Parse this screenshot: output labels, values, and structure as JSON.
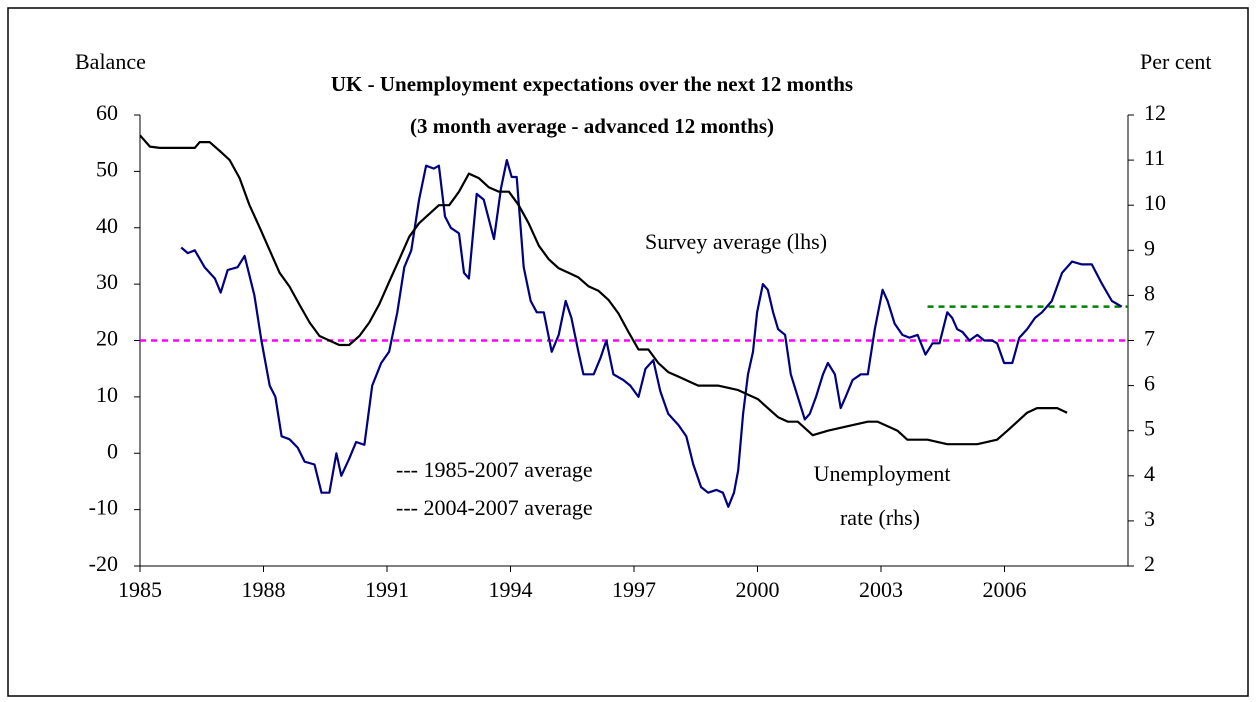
{
  "chart_data": {
    "type": "line",
    "title": [
      "UK - Unemployment expectations over the next 12 months",
      "(3 month average - advanced 12 months)"
    ],
    "ylabel": "Balance",
    "y2label": "Per cent",
    "xlim": [
      1985,
      2009
    ],
    "xticks": [
      1985,
      1988,
      1991,
      1994,
      1997,
      2000,
      2003,
      2006
    ],
    "ylim": [
      -20,
      60
    ],
    "yticks": [
      -20,
      -10,
      0,
      10,
      20,
      30,
      40,
      50,
      60
    ],
    "y2lim": [
      2,
      12
    ],
    "y2ticks": [
      2,
      3,
      4,
      5,
      6,
      7,
      8,
      9,
      10,
      11,
      12
    ],
    "grid": false,
    "series": [
      {
        "name": "Survey average (lhs)",
        "color": "#000080",
        "x": [
          1986.0,
          1986.16,
          1986.33,
          1986.57,
          1986.82,
          1986.96,
          1987.13,
          1987.37,
          1987.54,
          1987.78,
          1987.95,
          1988.15,
          1988.29,
          1988.44,
          1988.63,
          1988.83,
          1989.0,
          1989.24,
          1989.41,
          1989.6,
          1989.77,
          1989.89,
          1990.08,
          1990.25,
          1990.45,
          1990.64,
          1990.86,
          1991.05,
          1991.25,
          1991.42,
          1991.59,
          1991.78,
          1991.95,
          1992.14,
          1992.26,
          1992.41,
          1992.55,
          1992.75,
          1992.87,
          1992.99,
          1993.18,
          1993.35,
          1993.6,
          1993.77,
          1993.91,
          1994.03,
          1994.15,
          1994.32,
          1994.49,
          1994.64,
          1994.81,
          1995.0,
          1995.17,
          1995.34,
          1995.48,
          1995.65,
          1995.77,
          1996.02,
          1996.19,
          1996.33,
          1996.5,
          1996.74,
          1996.91,
          1997.11,
          1997.28,
          1997.47,
          1997.64,
          1997.83,
          1998.08,
          1998.27,
          1998.44,
          1998.63,
          1998.8,
          1999.0,
          1999.16,
          1999.29,
          1999.43,
          1999.53,
          1999.65,
          1999.77,
          1999.89,
          1999.99,
          2000.13,
          2000.25,
          2000.38,
          2000.5,
          2000.67,
          2000.81,
          2000.98,
          2001.15,
          2001.27,
          2001.42,
          2001.59,
          2001.71,
          2001.88,
          2002.02,
          2002.14,
          2002.31,
          2002.51,
          2002.68,
          2002.85,
          2003.04,
          2003.16,
          2003.33,
          2003.52,
          2003.69,
          2003.89,
          2004.08,
          2004.25,
          2004.42,
          2004.61,
          2004.73,
          2004.85,
          2004.98,
          2005.15,
          2005.34,
          2005.51,
          2005.7,
          2005.82,
          2005.99,
          2006.19,
          2006.36,
          2006.55,
          2006.74,
          2006.91,
          2007.15,
          2007.4,
          2007.64,
          2007.88,
          2008.12,
          2008.37,
          2008.61,
          2008.85
        ],
        "values": [
          36.5,
          35.5,
          36,
          33,
          31,
          28.5,
          32.5,
          33,
          35,
          28,
          20,
          12,
          10,
          3,
          2.5,
          1,
          -1.5,
          -2,
          -7,
          -7,
          0,
          -4,
          -1,
          2,
          1.5,
          12,
          16,
          18,
          25,
          33,
          36,
          45,
          51,
          50.5,
          51,
          42,
          40,
          39,
          32,
          31,
          46,
          45,
          38,
          47,
          52,
          49,
          49,
          33,
          27,
          25,
          25,
          18,
          21,
          27,
          24,
          18,
          14,
          14,
          17,
          20,
          14,
          13,
          12,
          10,
          15,
          16.5,
          11,
          7,
          5,
          3,
          -2,
          -6,
          -7,
          -6.5,
          -7,
          -9.5,
          -7,
          -3,
          7,
          14,
          18,
          25,
          30,
          29,
          25,
          22,
          21,
          14,
          10,
          6,
          7,
          10,
          14,
          16,
          14,
          8,
          10,
          13,
          14,
          14,
          22,
          29,
          27,
          23,
          21,
          20.5,
          21,
          17.5,
          19.5,
          19.5,
          25,
          24,
          22,
          21.5,
          20,
          21,
          20,
          20,
          19.5,
          16,
          16,
          20.5,
          22,
          24,
          25,
          27,
          32,
          34,
          33.5,
          33.5,
          30,
          27,
          26
        ]
      },
      {
        "name": "Unemployment rate (rhs)",
        "name_lines": [
          "Unemployment",
          "rate (rhs)"
        ],
        "color": "#000000",
        "axis": "y2",
        "x": [
          1985.0,
          1985.24,
          1985.48,
          1986.33,
          1986.45,
          1986.69,
          1986.94,
          1987.18,
          1987.42,
          1987.66,
          1987.91,
          1988.15,
          1988.39,
          1988.63,
          1988.87,
          1989.12,
          1989.36,
          1989.6,
          1989.84,
          1990.08,
          1990.33,
          1990.57,
          1990.81,
          1991.05,
          1991.3,
          1991.54,
          1991.78,
          1992.02,
          1992.26,
          1992.51,
          1992.75,
          1992.99,
          1993.23,
          1993.47,
          1993.72,
          1993.96,
          1994.2,
          1994.44,
          1994.69,
          1994.93,
          1995.17,
          1995.41,
          1995.65,
          1995.9,
          1996.14,
          1996.38,
          1996.62,
          1996.86,
          1997.11,
          1997.35,
          1997.59,
          1997.83,
          1998.08,
          1998.32,
          1998.56,
          1999.04,
          1999.53,
          1999.77,
          2000.01,
          2000.25,
          2000.5,
          2000.74,
          2000.98,
          2001.34,
          2001.71,
          2002.19,
          2002.68,
          2002.92,
          2003.4,
          2003.64,
          2004.13,
          2004.61,
          2004.85,
          2005.34,
          2005.82,
          2006.07,
          2006.31,
          2006.55,
          2006.79,
          2007.28,
          2007.52
        ],
        "values": [
          11.55,
          11.3,
          11.27,
          11.27,
          11.4,
          11.4,
          11.2,
          11.0,
          10.6,
          10.0,
          9.5,
          9.0,
          8.5,
          8.2,
          7.8,
          7.4,
          7.1,
          7.0,
          6.9,
          6.9,
          7.1,
          7.4,
          7.8,
          8.3,
          8.8,
          9.3,
          9.6,
          9.8,
          10.0,
          10.0,
          10.3,
          10.7,
          10.6,
          10.4,
          10.3,
          10.3,
          10.0,
          9.6,
          9.1,
          8.8,
          8.6,
          8.5,
          8.4,
          8.2,
          8.1,
          7.9,
          7.6,
          7.2,
          6.8,
          6.8,
          6.5,
          6.3,
          6.2,
          6.1,
          6.0,
          6.0,
          5.9,
          5.8,
          5.7,
          5.5,
          5.3,
          5.2,
          5.2,
          4.9,
          5.0,
          5.1,
          5.2,
          5.2,
          5.0,
          4.8,
          4.8,
          4.7,
          4.7,
          4.7,
          4.8,
          5.0,
          5.2,
          5.4,
          5.5,
          5.5,
          5.4
        ]
      }
    ],
    "reference_lines": [
      {
        "label": "--- 1985-2007 average",
        "value": 20,
        "x": [
          1985,
          2009
        ],
        "color": "#ff00ff"
      },
      {
        "label": "--- 2004-2007 average",
        "value": 26,
        "x": [
          2004.13,
          2009
        ],
        "color": "#008000"
      }
    ]
  }
}
